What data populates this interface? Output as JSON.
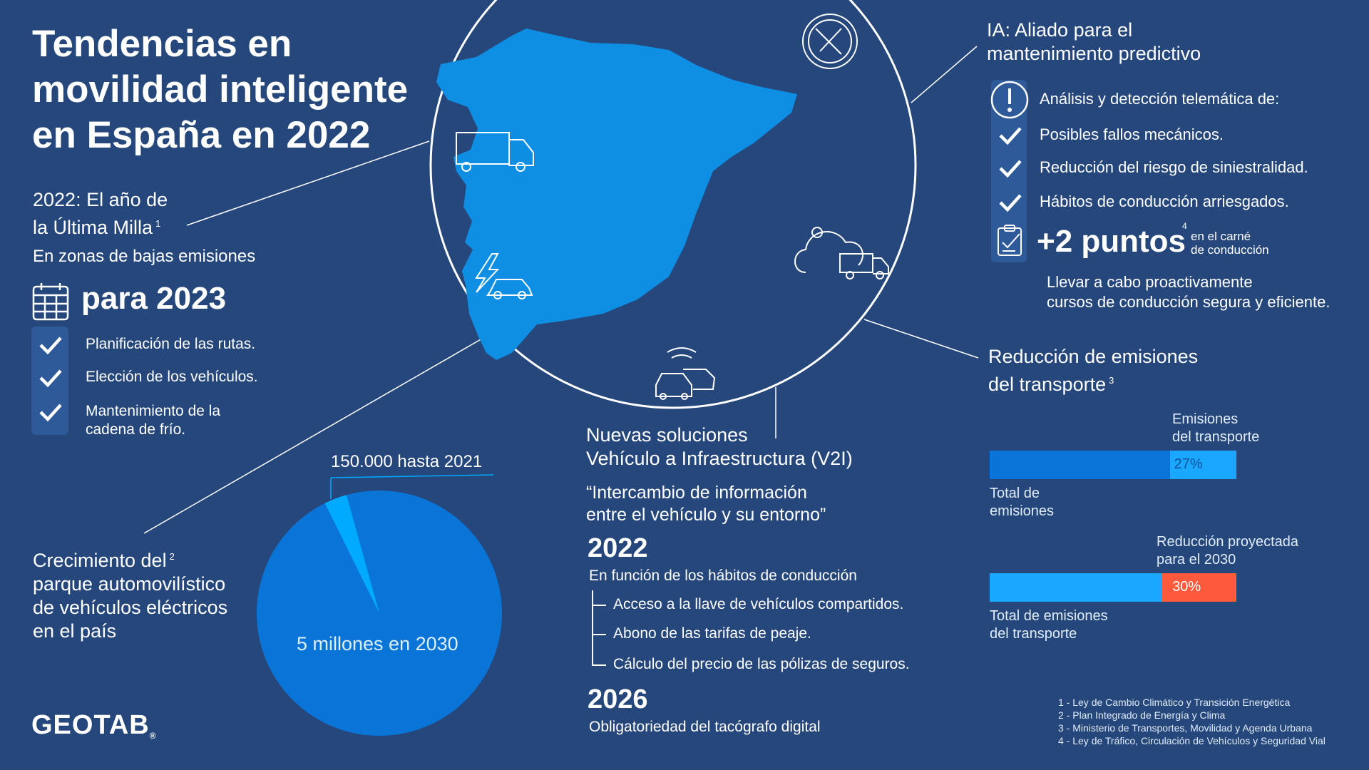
{
  "title_lines": [
    "Tendencias en",
    "movilidad inteligente",
    "en España en 2022"
  ],
  "last_mile": {
    "heading_lines": [
      "2022: El año de",
      "la Última Milla"
    ],
    "ref": "1",
    "zones_label": "En zonas de bajas emisiones",
    "year_label": "para 2023",
    "items": [
      "Planificación de las rutas.",
      "Elección de los vehículos.",
      "Mantenimiento de la",
      "cadena de frío."
    ]
  },
  "ev_growth": {
    "heading_lines": [
      "Crecimiento del",
      "parque automovilístico",
      "de vehículos eléctricos",
      "en el país"
    ],
    "ref": "2",
    "small_label": "150.000 hasta 2021",
    "large_label": "5 millones en 2030",
    "small_value": 150000,
    "large_value": 5000000
  },
  "v2i": {
    "heading_lines": [
      "Nuevas soluciones",
      "Vehículo a Infraestructura (V2I)"
    ],
    "quote_lines": [
      "“Intercambio de información",
      "entre el vehículo y su entorno”"
    ],
    "year1": "2022",
    "year1_sub": "En función de los hábitos de conducción",
    "year1_items": [
      "Acceso a la llave de vehículos compartidos.",
      "Abono de las tarifas de peaje.",
      "Cálculo del precio de las pólizas de seguros."
    ],
    "year2": "2026",
    "year2_sub": "Obligatoriedad del tacógrafo digital"
  },
  "ai": {
    "heading_lines": [
      "IA: Aliado para el",
      "mantenimiento predictivo"
    ],
    "intro": "Análisis y detección telemática de:",
    "items": [
      "Posibles fallos mecánicos.",
      "Reducción del riesgo de siniestralidad.",
      "Hábitos de conducción arriesgados."
    ],
    "points_big": "+2 puntos",
    "points_ref": "4",
    "points_small_lines": [
      "en el carné",
      "de conducción"
    ],
    "courses_lines": [
      "Llevar a cabo proactivamente",
      "cursos de conducción segura y eficiente."
    ]
  },
  "emissions": {
    "heading_lines": [
      "Reducción de emisiones",
      "del transporte"
    ],
    "ref": "3",
    "bar1": {
      "top_label_lines": [
        "Emisiones",
        "del transporte"
      ],
      "value_label": "27%",
      "value": 27,
      "bottom_label_lines": [
        "Total de",
        "emisiones"
      ]
    },
    "bar2": {
      "top_label_lines": [
        "Reducción proyectada",
        "para el 2030"
      ],
      "value_label": "30%",
      "value": 30,
      "bottom_label_lines": [
        "Total de emisiones",
        "del transporte"
      ]
    }
  },
  "footnotes": [
    "1 - Ley de Cambio Climático y Transición Energética",
    "2 - Plan Integrado de Energía y Clima",
    "3 - Ministerio de Transportes, Movilidad y Agenda Urbana",
    "4 - Ley de Tráfico, Circulación de Vehículos y Seguridad Vial"
  ],
  "logo": "GEOTAB",
  "icons": [
    "truck-icon",
    "wrench-screwdriver-icon",
    "electric-car-icon",
    "cloud-van-icon",
    "connected-cars-icon",
    "calendar-icon",
    "alert-icon",
    "checklist-icon"
  ],
  "colors": {
    "background": "#25477c",
    "map": "#0f8fe3",
    "pie_large": "#0a75d6",
    "pie_small": "#00aaff",
    "bar_dark": "#0a75d6",
    "bar_light": "#1aa8ff",
    "reduction": "#ff5a3c"
  }
}
